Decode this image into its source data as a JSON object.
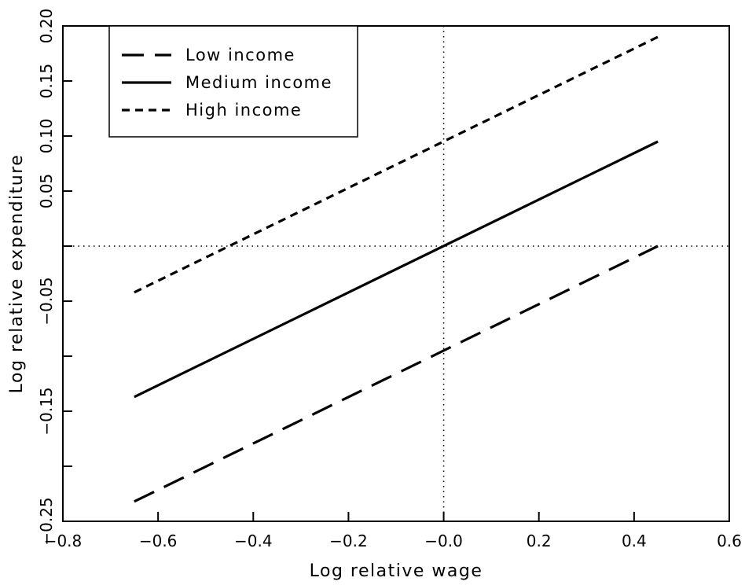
{
  "chart_data": {
    "type": "line",
    "xlabel": "Log relative wage",
    "ylabel": "Log relative expenditure",
    "xlim": [
      -0.8,
      0.6
    ],
    "ylim": [
      -0.25,
      0.2
    ],
    "xticks": [
      -0.8,
      -0.6,
      -0.4,
      -0.2,
      0.0,
      0.2,
      0.4,
      0.6
    ],
    "xtick_labels": [
      "−0.8",
      "−0.6",
      "−0.4",
      "−0.2",
      "−0.0",
      "0.2",
      "0.4",
      "0.6"
    ],
    "yticks": [
      -0.25,
      -0.15,
      -0.05,
      0.05,
      0.1,
      0.15,
      0.2
    ],
    "ytick_labels": [
      "−0.25",
      "−0.15",
      "−0.05",
      "0.05",
      "0.10",
      "0.15",
      "0.20"
    ],
    "yticks_minor": [
      -0.2,
      -0.1,
      0.0
    ],
    "reference_lines": {
      "x": 0.0,
      "y": 0.0,
      "style": "dotted"
    },
    "legend_position": "top-left",
    "grid": false,
    "series": [
      {
        "name": "Low income",
        "style": "long-dash",
        "x": [
          -0.65,
          0.45
        ],
        "y": [
          -0.232,
          0.0
        ]
      },
      {
        "name": "Medium income",
        "style": "solid",
        "x": [
          -0.65,
          0.45
        ],
        "y": [
          -0.137,
          0.095
        ]
      },
      {
        "name": "High income",
        "style": "short-dash",
        "x": [
          -0.65,
          0.45
        ],
        "y": [
          -0.042,
          0.19
        ]
      }
    ]
  }
}
